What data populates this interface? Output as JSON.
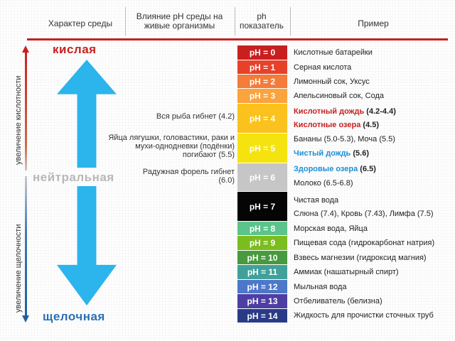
{
  "header": {
    "col1": "Характер среды",
    "col2": "Влияние pH среды на живые организмы",
    "col3": "ph показатель",
    "col4": "Пример"
  },
  "side": {
    "acid_increase": "увеличение кислотности",
    "alkali_increase": "увеличение щелочности",
    "acid": "кислая",
    "neutral": "нейтральная",
    "alkaline": "щелочная"
  },
  "notes": {
    "fish": "Вся рыба гибнет (4.2)",
    "frog": "Яйца лягушки, головастики, раки и мухи-однодневки (подёнки) погибают (5.5)",
    "trout": "Радужная форель гибнет (6.0)"
  },
  "ph_levels": [
    {
      "label": "pH = 0",
      "color": "#c8201f"
    },
    {
      "label": "pH = 1",
      "color": "#e8412a"
    },
    {
      "label": "pH = 2",
      "color": "#f47b3a"
    },
    {
      "label": "pH = 3",
      "color": "#fba33c"
    },
    {
      "label": "pH = 4",
      "color": "#fbc21d"
    },
    {
      "label": "pH = 5",
      "color": "#f5e310"
    },
    {
      "label": "pH = 6",
      "color": "#c6c6c6"
    },
    {
      "label": "pH = 7",
      "color": "#050505"
    },
    {
      "label": "pH = 8",
      "color": "#5cc38a"
    },
    {
      "label": "pH = 9",
      "color": "#7bbd1f"
    },
    {
      "label": "pH = 10",
      "color": "#479a3d"
    },
    {
      "label": "pH = 11",
      "color": "#41a19a"
    },
    {
      "label": "pH = 12",
      "color": "#4d78c9"
    },
    {
      "label": "pH = 13",
      "color": "#4d3ea3"
    },
    {
      "label": "pH = 14",
      "color": "#2a3b86"
    }
  ],
  "examples": {
    "e0": "Кислотные батарейки",
    "e1": "Серная кислота",
    "e2": "Лимонный сок, Уксус",
    "e3": "Апельсиновый сок, Сода",
    "acid_rain": "Кислотный дождь",
    "acid_rain_val": "(4.2-4.4)",
    "acid_lakes": "Кислотные озера",
    "acid_lakes_val": "(4.5)",
    "e5a": "Бананы (5.0-5.3), Моча (5.5)",
    "clean_rain": "Чистый дождь",
    "clean_rain_val": "(5.6)",
    "healthy_lakes": "Здоровые озера",
    "healthy_lakes_val": "(6.5)",
    "e6b": "Молоко (6.5-6.8)",
    "e7a": "Чистая вода",
    "e7b": "Слюна (7.4), Кровь (7.43), Лимфа (7.5)",
    "e8": "Морская вода, Яйца",
    "e9": "Пищевая сода (гидрокарбонат натрия)",
    "e10": "Взвесь магнезии (гидроксид магния)",
    "e11": "Аммиак (нашатырный спирт)",
    "e12": "Мыльная вода",
    "e13": "Отбеливатель (белизна)",
    "e14": "Жидкость для прочистки сточных труб"
  }
}
